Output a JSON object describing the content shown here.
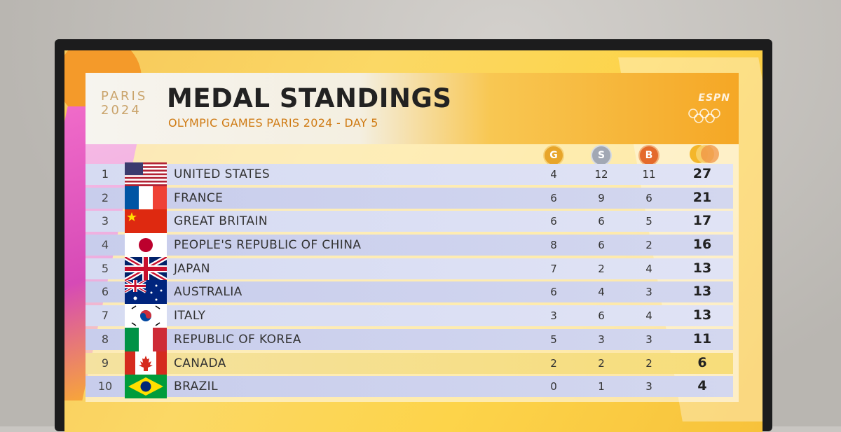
{
  "header": {
    "logo_line1": "PARIS",
    "logo_line2": "2024",
    "title": "MEDAL STANDINGS",
    "subtitle": "OLYMPIC GAMES PARIS 2024 - DAY 5",
    "broadcaster": "ESPN"
  },
  "columns": {
    "gold": "G",
    "silver": "S",
    "bronze": "B"
  },
  "standings": [
    {
      "rank": "1",
      "country": "UNITED STATES",
      "gold": "4",
      "silver": "12",
      "bronze": "11",
      "total": "27",
      "flag": "usa-flag"
    },
    {
      "rank": "2",
      "country": "FRANCE",
      "gold": "6",
      "silver": "9",
      "bronze": "6",
      "total": "21",
      "flag": "france-flag"
    },
    {
      "rank": "3",
      "country": "GREAT BRITAIN",
      "gold": "6",
      "silver": "6",
      "bronze": "5",
      "total": "17",
      "flag": "china-flag"
    },
    {
      "rank": "4",
      "country": "PEOPLE'S REPUBLIC OF CHINA",
      "gold": "8",
      "silver": "6",
      "bronze": "2",
      "total": "16",
      "flag": "japan-flag"
    },
    {
      "rank": "5",
      "country": "JAPAN",
      "gold": "7",
      "silver": "2",
      "bronze": "4",
      "total": "13",
      "flag": "uk-flag"
    },
    {
      "rank": "6",
      "country": "AUSTRALIA",
      "gold": "6",
      "silver": "4",
      "bronze": "3",
      "total": "13",
      "flag": "australia-flag"
    },
    {
      "rank": "7",
      "country": "ITALY",
      "gold": "3",
      "silver": "6",
      "bronze": "4",
      "total": "13",
      "flag": "korea-flag"
    },
    {
      "rank": "8",
      "country": "REPUBLIC OF KOREA",
      "gold": "5",
      "silver": "3",
      "bronze": "3",
      "total": "11",
      "flag": "italy-flag"
    },
    {
      "rank": "9",
      "country": "CANADA",
      "gold": "2",
      "silver": "2",
      "bronze": "2",
      "total": "6",
      "flag": "canada-flag"
    },
    {
      "rank": "10",
      "country": "BRAZIL",
      "gold": "0",
      "silver": "1",
      "bronze": "3",
      "total": "4",
      "flag": "brazil-flag"
    }
  ]
}
